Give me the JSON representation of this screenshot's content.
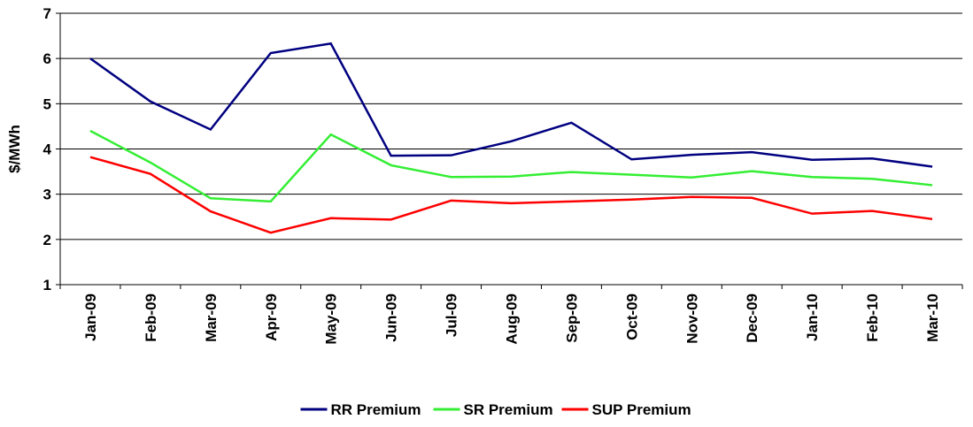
{
  "chart_data": {
    "type": "line",
    "y_label": "$/MWh",
    "categories": [
      "Jan-09",
      "Feb-09",
      "Mar-09",
      "Apr-09",
      "May-09",
      "Jun-09",
      "Jul-09",
      "Aug-09",
      "Sep-09",
      "Oct-09",
      "Nov-09",
      "Dec-09",
      "Jan-10",
      "Feb-10",
      "Mar-10"
    ],
    "series": [
      {
        "name": "RR Premium",
        "color": "#000080",
        "values": [
          6.0,
          5.05,
          4.43,
          6.12,
          6.33,
          3.85,
          3.86,
          4.17,
          4.58,
          3.77,
          3.87,
          3.93,
          3.76,
          3.79,
          3.61
        ]
      },
      {
        "name": "SR Premium",
        "color": "#33ee33",
        "values": [
          4.4,
          3.7,
          2.91,
          2.84,
          4.32,
          3.64,
          3.38,
          3.39,
          3.49,
          3.43,
          3.37,
          3.51,
          3.38,
          3.34,
          3.2
        ]
      },
      {
        "name": "SUP Premium",
        "color": "#ff0000",
        "values": [
          3.82,
          3.45,
          2.62,
          2.15,
          2.47,
          2.44,
          2.86,
          2.8,
          2.84,
          2.88,
          2.94,
          2.92,
          2.57,
          2.63,
          2.45
        ]
      }
    ],
    "ylim": [
      1,
      7
    ],
    "yticks": [
      1,
      2,
      3,
      4,
      5,
      6,
      7
    ],
    "grid": true,
    "legend": "bottom"
  }
}
